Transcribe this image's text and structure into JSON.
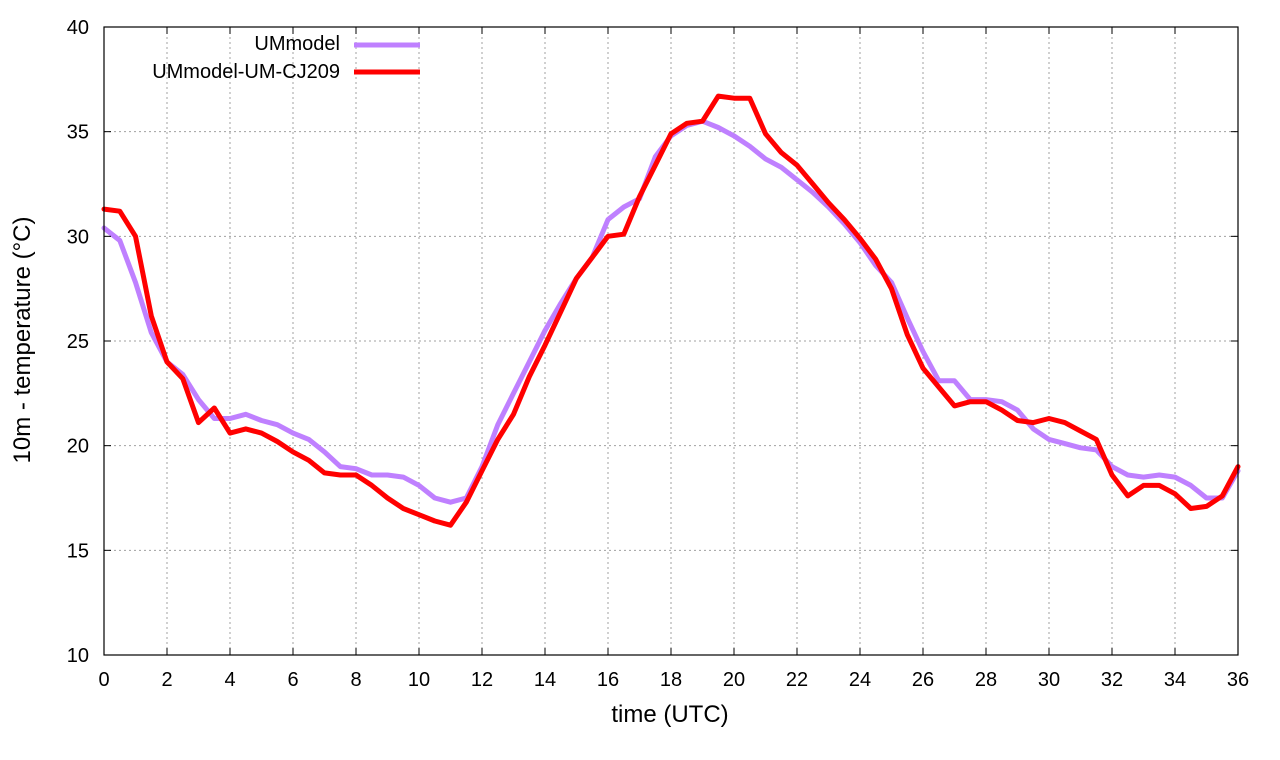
{
  "chart_data": {
    "type": "line",
    "xlabel": "time (UTC)",
    "ylabel": "10m - temperature (°C)",
    "xlim": [
      0,
      36
    ],
    "ylim": [
      10,
      40
    ],
    "xticks": [
      0,
      2,
      4,
      6,
      8,
      10,
      12,
      14,
      16,
      18,
      20,
      22,
      24,
      26,
      28,
      30,
      32,
      34,
      36
    ],
    "yticks": [
      10,
      15,
      20,
      25,
      30,
      35,
      40
    ],
    "grid": true,
    "legend_position": "top-left",
    "series": [
      {
        "name": "UMmodel",
        "color": "#bf80ff",
        "x": [
          0,
          0.5,
          1,
          1.5,
          2,
          2.5,
          3,
          3.5,
          4,
          4.5,
          5,
          5.5,
          6,
          6.5,
          7,
          7.5,
          8,
          8.5,
          9,
          9.5,
          10,
          10.5,
          11,
          11.5,
          12,
          12.5,
          13,
          13.5,
          14,
          14.5,
          15,
          15.5,
          16,
          16.5,
          17,
          17.5,
          18,
          18.5,
          19,
          19.5,
          20,
          20.5,
          21,
          21.5,
          22,
          22.5,
          23,
          23.5,
          24,
          24.5,
          25,
          25.5,
          26,
          26.5,
          27,
          27.5,
          28,
          28.5,
          29,
          29.5,
          30,
          30.5,
          31,
          31.5,
          32,
          32.5,
          33,
          33.5,
          34,
          34.5,
          35,
          35.5,
          36
        ],
        "values": [
          30.4,
          29.8,
          27.8,
          25.4,
          24.0,
          23.4,
          22.2,
          21.3,
          21.3,
          21.5,
          21.2,
          21.0,
          20.6,
          20.3,
          19.7,
          19.0,
          18.9,
          18.6,
          18.6,
          18.5,
          18.1,
          17.5,
          17.3,
          17.5,
          19.0,
          21.0,
          22.5,
          24.0,
          25.5,
          26.8,
          28.0,
          29.0,
          30.8,
          31.4,
          31.8,
          33.8,
          34.8,
          35.3,
          35.5,
          35.2,
          34.8,
          34.3,
          33.7,
          33.3,
          32.7,
          32.1,
          31.4,
          30.6,
          29.7,
          28.6,
          27.8,
          26.1,
          24.5,
          23.1,
          23.1,
          22.2,
          22.2,
          22.1,
          21.7,
          20.8,
          20.3,
          20.1,
          19.9,
          19.8,
          19.0,
          18.6,
          18.5,
          18.6,
          18.5,
          18.1,
          17.5,
          17.5,
          18.8
        ]
      },
      {
        "name": "UMmodel-UM-CJ209",
        "color": "#ff0000",
        "x": [
          0,
          0.5,
          1,
          1.5,
          2,
          2.5,
          3,
          3.5,
          4,
          4.5,
          5,
          5.5,
          6,
          6.5,
          7,
          7.5,
          8,
          8.5,
          9,
          9.5,
          10,
          10.5,
          11,
          11.5,
          12,
          12.5,
          13,
          13.5,
          14,
          14.5,
          15,
          15.5,
          16,
          16.5,
          17,
          17.5,
          18,
          18.5,
          19,
          19.5,
          20,
          20.5,
          21,
          21.5,
          22,
          22.5,
          23,
          23.5,
          24,
          24.5,
          25,
          25.5,
          26,
          26.5,
          27,
          27.5,
          28,
          28.5,
          29,
          29.5,
          30,
          30.5,
          31,
          31.5,
          32,
          32.5,
          33,
          33.5,
          34,
          34.5,
          35,
          35.5,
          36
        ],
        "values": [
          31.3,
          31.2,
          30.0,
          26.2,
          24.0,
          23.2,
          21.1,
          21.8,
          20.6,
          20.8,
          20.6,
          20.2,
          19.7,
          19.3,
          18.7,
          18.6,
          18.6,
          18.1,
          17.5,
          17.0,
          16.7,
          16.4,
          16.2,
          17.3,
          18.8,
          20.3,
          21.5,
          23.3,
          24.8,
          26.4,
          28.0,
          29.0,
          30.0,
          30.1,
          31.9,
          33.4,
          34.9,
          35.4,
          35.5,
          36.7,
          36.6,
          36.6,
          34.9,
          34.0,
          33.4,
          32.5,
          31.6,
          30.8,
          29.9,
          28.9,
          27.5,
          25.3,
          23.7,
          22.8,
          21.9,
          22.1,
          22.1,
          21.7,
          21.2,
          21.1,
          21.3,
          21.1,
          20.7,
          20.3,
          18.6,
          17.6,
          18.1,
          18.1,
          17.7,
          17.0,
          17.1,
          17.6,
          19.0
        ]
      }
    ]
  }
}
